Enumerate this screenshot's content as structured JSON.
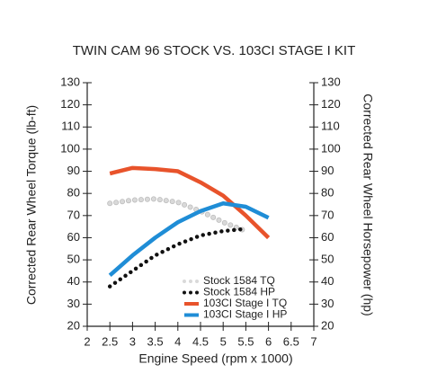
{
  "chart_data": {
    "type": "line",
    "title": "TWIN CAM 96 STOCK VS. 103CI STAGE I KIT",
    "x_label": "Engine Speed (rpm x 1000)",
    "y_label": "Corrected Rear Wheel Torque (lb-ft)",
    "y2_label": "Corrected Rear Wheel Horsepower (hp)",
    "x": [
      2.5,
      3,
      3.5,
      4,
      4.5,
      5,
      5.5,
      6
    ],
    "series": [
      {
        "name": "Stock 1584 TQ",
        "color": "#d9d9d9",
        "style": "dotted",
        "values": [
          75.5,
          77,
          77.5,
          76,
          72,
          67,
          63,
          null
        ]
      },
      {
        "name": "Stock 1584 HP",
        "color": "#111111",
        "style": "dotted",
        "axis": "y2",
        "values": [
          38,
          45,
          52,
          57,
          61,
          63,
          64,
          null
        ]
      },
      {
        "name": "103CI Stage I TQ",
        "color": "#e8532b",
        "style": "solid",
        "values": [
          89,
          91.5,
          91,
          90,
          85,
          79,
          70,
          60
        ]
      },
      {
        "name": "103CI Stage I HP",
        "color": "#1f8dd6",
        "style": "solid",
        "axis": "y2",
        "values": [
          43,
          52,
          60,
          67,
          72,
          75.5,
          74,
          69
        ]
      }
    ],
    "xlim": [
      2,
      7
    ],
    "xticks": [
      2,
      2.5,
      3,
      3.5,
      4,
      4.5,
      5,
      5.5,
      6,
      6.5,
      7
    ],
    "ylim": [
      20,
      130
    ],
    "yticks": [
      20,
      30,
      40,
      50,
      60,
      70,
      80,
      90,
      100,
      110,
      120,
      130
    ],
    "y2lim": [
      20,
      130
    ],
    "y2ticks": [
      20,
      30,
      40,
      50,
      60,
      70,
      80,
      90,
      100,
      110,
      120,
      130
    ],
    "y_color": "#e8532b",
    "y2_color": "#1f8dd6",
    "grid": false,
    "legend": "lower right"
  }
}
